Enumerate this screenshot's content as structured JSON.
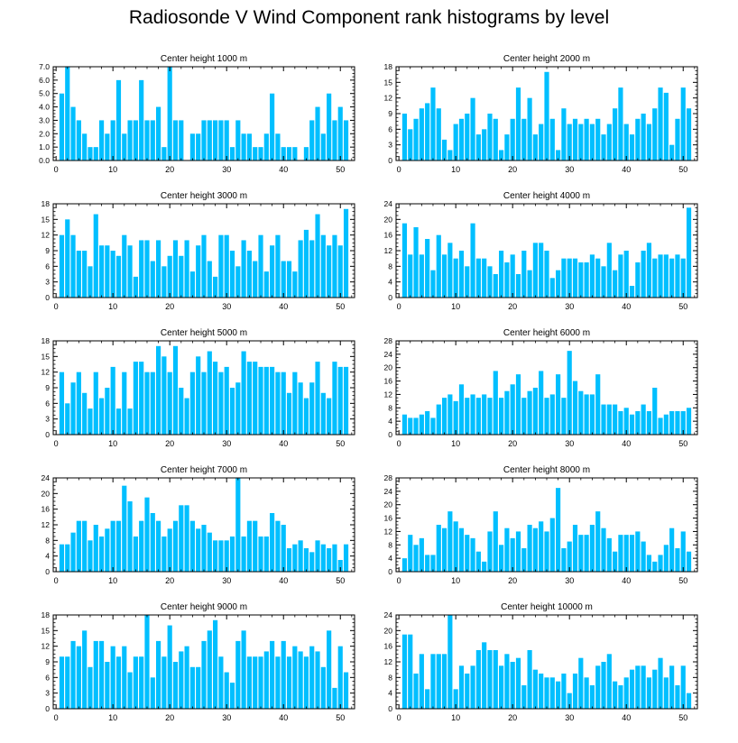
{
  "title": "Radiosonde V Wind Component rank histograms by level",
  "bar_color": "#00bfff",
  "chart_data": [
    {
      "type": "bar",
      "title": "Center height 1000 m",
      "x": [
        0,
        1,
        2,
        3,
        4,
        5,
        6,
        7,
        8,
        9,
        10,
        11,
        12,
        13,
        14,
        15,
        16,
        17,
        18,
        19,
        20,
        21,
        22,
        23,
        24,
        25,
        26,
        27,
        28,
        29,
        30,
        31,
        32,
        33,
        34,
        35,
        36,
        37,
        38,
        39,
        40,
        41,
        42,
        43,
        44,
        45,
        46,
        47,
        48,
        49,
        50,
        51
      ],
      "values": [
        0,
        5,
        7,
        4,
        3,
        2,
        1,
        1,
        3,
        2,
        3,
        6,
        2,
        3,
        3,
        6,
        3,
        3,
        4,
        1,
        7,
        3,
        3,
        0,
        2,
        2,
        3,
        3,
        3,
        3,
        3,
        1,
        3,
        2,
        2,
        1,
        1,
        2,
        5,
        2,
        1,
        1,
        1,
        0,
        1,
        3,
        4,
        2,
        5,
        3,
        4,
        3
      ],
      "ylim": [
        0,
        7
      ],
      "yticks": [
        0,
        1,
        2,
        3,
        4,
        5,
        6,
        7
      ],
      "ytick_labels": [
        "0.0",
        "1.0",
        "2.0",
        "3.0",
        "4.0",
        "5.0",
        "6.0",
        "7.0"
      ],
      "xticks": [
        0,
        10,
        20,
        30,
        40,
        50
      ]
    },
    {
      "type": "bar",
      "title": "Center height 2000 m",
      "x": [
        0,
        1,
        2,
        3,
        4,
        5,
        6,
        7,
        8,
        9,
        10,
        11,
        12,
        13,
        14,
        15,
        16,
        17,
        18,
        19,
        20,
        21,
        22,
        23,
        24,
        25,
        26,
        27,
        28,
        29,
        30,
        31,
        32,
        33,
        34,
        35,
        36,
        37,
        38,
        39,
        40,
        41,
        42,
        43,
        44,
        45,
        46,
        47,
        48,
        49,
        50,
        51
      ],
      "values": [
        0,
        9,
        6,
        8,
        10,
        11,
        14,
        10,
        4,
        2,
        7,
        8,
        9,
        12,
        5,
        6,
        9,
        8,
        2,
        5,
        8,
        14,
        8,
        12,
        5,
        7,
        17,
        8,
        2,
        10,
        7,
        8,
        7,
        8,
        7,
        8,
        5,
        7,
        10,
        14,
        7,
        5,
        8,
        9,
        7,
        10,
        14,
        13,
        3,
        8,
        14,
        10
      ],
      "ylim": [
        0,
        18
      ],
      "yticks": [
        0,
        3,
        6,
        9,
        12,
        15,
        18
      ],
      "ytick_labels": [
        "0",
        "3",
        "6",
        "9",
        "12",
        "15",
        "18"
      ],
      "xticks": [
        0,
        10,
        20,
        30,
        40,
        50
      ]
    },
    {
      "type": "bar",
      "title": "Center height 3000 m",
      "x": [
        0,
        1,
        2,
        3,
        4,
        5,
        6,
        7,
        8,
        9,
        10,
        11,
        12,
        13,
        14,
        15,
        16,
        17,
        18,
        19,
        20,
        21,
        22,
        23,
        24,
        25,
        26,
        27,
        28,
        29,
        30,
        31,
        32,
        33,
        34,
        35,
        36,
        37,
        38,
        39,
        40,
        41,
        42,
        43,
        44,
        45,
        46,
        47,
        48,
        49,
        50,
        51
      ],
      "values": [
        0,
        12,
        15,
        12,
        9,
        9,
        6,
        16,
        10,
        10,
        9,
        8,
        12,
        10,
        4,
        11,
        11,
        7,
        11,
        6,
        8,
        11,
        8,
        11,
        5,
        10,
        12,
        7,
        4,
        12,
        12,
        9,
        6,
        11,
        9,
        7,
        12,
        5,
        10,
        12,
        7,
        7,
        5,
        11,
        13,
        11,
        16,
        12,
        10,
        12,
        10,
        17
      ],
      "ylim": [
        0,
        18
      ],
      "yticks": [
        0,
        3,
        6,
        9,
        12,
        15,
        18
      ],
      "ytick_labels": [
        "0",
        "3",
        "6",
        "9",
        "12",
        "15",
        "18"
      ],
      "xticks": [
        0,
        10,
        20,
        30,
        40,
        50
      ]
    },
    {
      "type": "bar",
      "title": "Center height 4000 m",
      "x": [
        0,
        1,
        2,
        3,
        4,
        5,
        6,
        7,
        8,
        9,
        10,
        11,
        12,
        13,
        14,
        15,
        16,
        17,
        18,
        19,
        20,
        21,
        22,
        23,
        24,
        25,
        26,
        27,
        28,
        29,
        30,
        31,
        32,
        33,
        34,
        35,
        36,
        37,
        38,
        39,
        40,
        41,
        42,
        43,
        44,
        45,
        46,
        47,
        48,
        49,
        50,
        51
      ],
      "values": [
        0,
        19,
        11,
        18,
        11,
        15,
        7,
        16,
        11,
        14,
        10,
        12,
        8,
        19,
        10,
        10,
        8,
        6,
        12,
        9,
        11,
        6,
        12,
        7,
        14,
        14,
        12,
        5,
        7,
        10,
        10,
        10,
        9,
        9,
        11,
        10,
        8,
        14,
        7,
        11,
        12,
        3,
        9,
        12,
        14,
        10,
        11,
        11,
        10,
        11,
        10,
        23
      ],
      "ylim": [
        0,
        24
      ],
      "yticks": [
        0,
        4,
        8,
        12,
        16,
        20,
        24
      ],
      "ytick_labels": [
        "0",
        "4",
        "8",
        "12",
        "16",
        "20",
        "24"
      ],
      "xticks": [
        0,
        10,
        20,
        30,
        40,
        50
      ]
    },
    {
      "type": "bar",
      "title": "Center height 5000 m",
      "x": [
        0,
        1,
        2,
        3,
        4,
        5,
        6,
        7,
        8,
        9,
        10,
        11,
        12,
        13,
        14,
        15,
        16,
        17,
        18,
        19,
        20,
        21,
        22,
        23,
        24,
        25,
        26,
        27,
        28,
        29,
        30,
        31,
        32,
        33,
        34,
        35,
        36,
        37,
        38,
        39,
        40,
        41,
        42,
        43,
        44,
        45,
        46,
        47,
        48,
        49,
        50,
        51
      ],
      "values": [
        0,
        12,
        6,
        10,
        12,
        8,
        5,
        12,
        7,
        9,
        13,
        5,
        12,
        5,
        14,
        14,
        12,
        12,
        17,
        15,
        12,
        17,
        9,
        7,
        12,
        15,
        12,
        16,
        14,
        12,
        13,
        9,
        10,
        16,
        14,
        14,
        13,
        13,
        13,
        12,
        12,
        8,
        12,
        10,
        7,
        10,
        14,
        8,
        7,
        14,
        13,
        13
      ],
      "ylim": [
        0,
        18
      ],
      "yticks": [
        0,
        3,
        6,
        9,
        12,
        15,
        18
      ],
      "ytick_labels": [
        "0",
        "3",
        "6",
        "9",
        "12",
        "15",
        "18"
      ],
      "xticks": [
        0,
        10,
        20,
        30,
        40,
        50
      ]
    },
    {
      "type": "bar",
      "title": "Center height 6000 m",
      "x": [
        0,
        1,
        2,
        3,
        4,
        5,
        6,
        7,
        8,
        9,
        10,
        11,
        12,
        13,
        14,
        15,
        16,
        17,
        18,
        19,
        20,
        21,
        22,
        23,
        24,
        25,
        26,
        27,
        28,
        29,
        30,
        31,
        32,
        33,
        34,
        35,
        36,
        37,
        38,
        39,
        40,
        41,
        42,
        43,
        44,
        45,
        46,
        47,
        48,
        49,
        50,
        51
      ],
      "values": [
        0,
        6,
        5,
        5,
        6,
        7,
        5,
        9,
        11,
        12,
        10,
        15,
        11,
        12,
        11,
        12,
        11,
        19,
        11,
        13,
        15,
        18,
        11,
        13,
        14,
        19,
        11,
        12,
        18,
        11,
        25,
        16,
        13,
        12,
        12,
        18,
        9,
        9,
        9,
        7,
        8,
        6,
        7,
        9,
        7,
        14,
        5,
        6,
        7,
        7,
        7,
        8
      ],
      "ylim": [
        0,
        28
      ],
      "yticks": [
        0,
        4,
        8,
        12,
        16,
        20,
        24,
        28
      ],
      "ytick_labels": [
        "0",
        "4",
        "8",
        "12",
        "16",
        "20",
        "24",
        "28"
      ],
      "xticks": [
        0,
        10,
        20,
        30,
        40,
        50
      ]
    },
    {
      "type": "bar",
      "title": "Center height 7000 m",
      "x": [
        0,
        1,
        2,
        3,
        4,
        5,
        6,
        7,
        8,
        9,
        10,
        11,
        12,
        13,
        14,
        15,
        16,
        17,
        18,
        19,
        20,
        21,
        22,
        23,
        24,
        25,
        26,
        27,
        28,
        29,
        30,
        31,
        32,
        33,
        34,
        35,
        36,
        37,
        38,
        39,
        40,
        41,
        42,
        43,
        44,
        45,
        46,
        47,
        48,
        49,
        50,
        51
      ],
      "values": [
        0,
        7,
        7,
        10,
        13,
        13,
        8,
        12,
        9,
        11,
        13,
        13,
        22,
        18,
        9,
        13,
        19,
        15,
        13,
        9,
        11,
        13,
        17,
        17,
        13,
        11,
        12,
        10,
        8,
        8,
        8,
        9,
        24,
        9,
        13,
        13,
        9,
        9,
        15,
        13,
        12,
        6,
        7,
        8,
        6,
        5,
        8,
        7,
        6,
        7,
        3,
        7
      ],
      "ylim": [
        0,
        24
      ],
      "yticks": [
        0,
        4,
        8,
        12,
        16,
        20,
        24
      ],
      "ytick_labels": [
        "0",
        "4",
        "8",
        "12",
        "16",
        "20",
        "24"
      ],
      "xticks": [
        0,
        10,
        20,
        30,
        40,
        50
      ]
    },
    {
      "type": "bar",
      "title": "Center height 8000 m",
      "x": [
        0,
        1,
        2,
        3,
        4,
        5,
        6,
        7,
        8,
        9,
        10,
        11,
        12,
        13,
        14,
        15,
        16,
        17,
        18,
        19,
        20,
        21,
        22,
        23,
        24,
        25,
        26,
        27,
        28,
        29,
        30,
        31,
        32,
        33,
        34,
        35,
        36,
        37,
        38,
        39,
        40,
        41,
        42,
        43,
        44,
        45,
        46,
        47,
        48,
        49,
        50,
        51
      ],
      "values": [
        0,
        4,
        11,
        8,
        10,
        5,
        5,
        14,
        13,
        18,
        15,
        13,
        11,
        10,
        6,
        3,
        12,
        18,
        8,
        13,
        10,
        12,
        7,
        14,
        13,
        15,
        12,
        16,
        25,
        7,
        9,
        14,
        11,
        11,
        14,
        18,
        13,
        10,
        6,
        11,
        11,
        11,
        12,
        9,
        5,
        3,
        5,
        8,
        13,
        7,
        12,
        6
      ],
      "ylim": [
        0,
        28
      ],
      "yticks": [
        0,
        4,
        8,
        12,
        16,
        20,
        24,
        28
      ],
      "ytick_labels": [
        "0",
        "4",
        "8",
        "12",
        "16",
        "20",
        "24",
        "28"
      ],
      "xticks": [
        0,
        10,
        20,
        30,
        40,
        50
      ]
    },
    {
      "type": "bar",
      "title": "Center height 9000 m",
      "x": [
        0,
        1,
        2,
        3,
        4,
        5,
        6,
        7,
        8,
        9,
        10,
        11,
        12,
        13,
        14,
        15,
        16,
        17,
        18,
        19,
        20,
        21,
        22,
        23,
        24,
        25,
        26,
        27,
        28,
        29,
        30,
        31,
        32,
        33,
        34,
        35,
        36,
        37,
        38,
        39,
        40,
        41,
        42,
        43,
        44,
        45,
        46,
        47,
        48,
        49,
        50,
        51
      ],
      "values": [
        0,
        10,
        10,
        13,
        12,
        15,
        8,
        13,
        13,
        9,
        12,
        10,
        12,
        7,
        10,
        10,
        18,
        6,
        13,
        10,
        16,
        9,
        11,
        12,
        8,
        8,
        13,
        15,
        17,
        10,
        7,
        5,
        13,
        15,
        10,
        10,
        10,
        11,
        13,
        10,
        13,
        10,
        12,
        11,
        10,
        12,
        11,
        8,
        15,
        4,
        12,
        7
      ],
      "ylim": [
        0,
        18
      ],
      "yticks": [
        0,
        3,
        6,
        9,
        12,
        15,
        18
      ],
      "ytick_labels": [
        "0",
        "3",
        "6",
        "9",
        "12",
        "15",
        "18"
      ],
      "xticks": [
        0,
        10,
        20,
        30,
        40,
        50
      ]
    },
    {
      "type": "bar",
      "title": "Center height 10000 m",
      "x": [
        0,
        1,
        2,
        3,
        4,
        5,
        6,
        7,
        8,
        9,
        10,
        11,
        12,
        13,
        14,
        15,
        16,
        17,
        18,
        19,
        20,
        21,
        22,
        23,
        24,
        25,
        26,
        27,
        28,
        29,
        30,
        31,
        32,
        33,
        34,
        35,
        36,
        37,
        38,
        39,
        40,
        41,
        42,
        43,
        44,
        45,
        46,
        47,
        48,
        49,
        50,
        51
      ],
      "values": [
        0,
        19,
        19,
        9,
        14,
        5,
        14,
        14,
        14,
        24,
        5,
        11,
        9,
        11,
        15,
        17,
        15,
        15,
        11,
        14,
        12,
        13,
        6,
        15,
        10,
        9,
        8,
        8,
        7,
        9,
        4,
        9,
        13,
        8,
        6,
        11,
        12,
        14,
        7,
        6,
        8,
        10,
        11,
        11,
        8,
        10,
        13,
        8,
        11,
        6,
        11,
        4
      ],
      "ylim": [
        0,
        24
      ],
      "yticks": [
        0,
        4,
        8,
        12,
        16,
        20,
        24
      ],
      "ytick_labels": [
        "0",
        "4",
        "8",
        "12",
        "16",
        "20",
        "24"
      ],
      "xticks": [
        0,
        10,
        20,
        30,
        40,
        50
      ]
    }
  ]
}
